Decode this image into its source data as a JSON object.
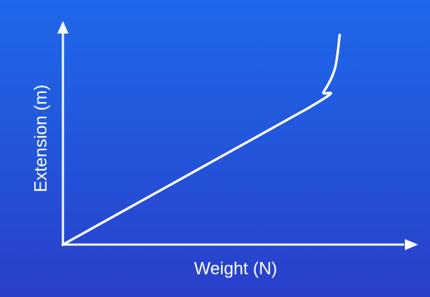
{
  "chart_data": {
    "type": "line",
    "title": "",
    "xlabel": "Weight (N)",
    "ylabel": "Extension (m)",
    "x_ticks": [],
    "y_ticks": [],
    "grid": false,
    "legend": "none",
    "series": [
      {
        "style": "solid",
        "points": [
          [
            0,
            0
          ],
          [
            0.77,
            0.65
          ],
          [
            0.82,
            0.73
          ],
          [
            0.855,
            0.84
          ],
          [
            0.87,
            1.0
          ]
        ]
      }
    ]
  },
  "colors": {
    "background_top": "#1f68ea",
    "background_bottom": "#2a3fca",
    "foreground": "#ffffff"
  }
}
